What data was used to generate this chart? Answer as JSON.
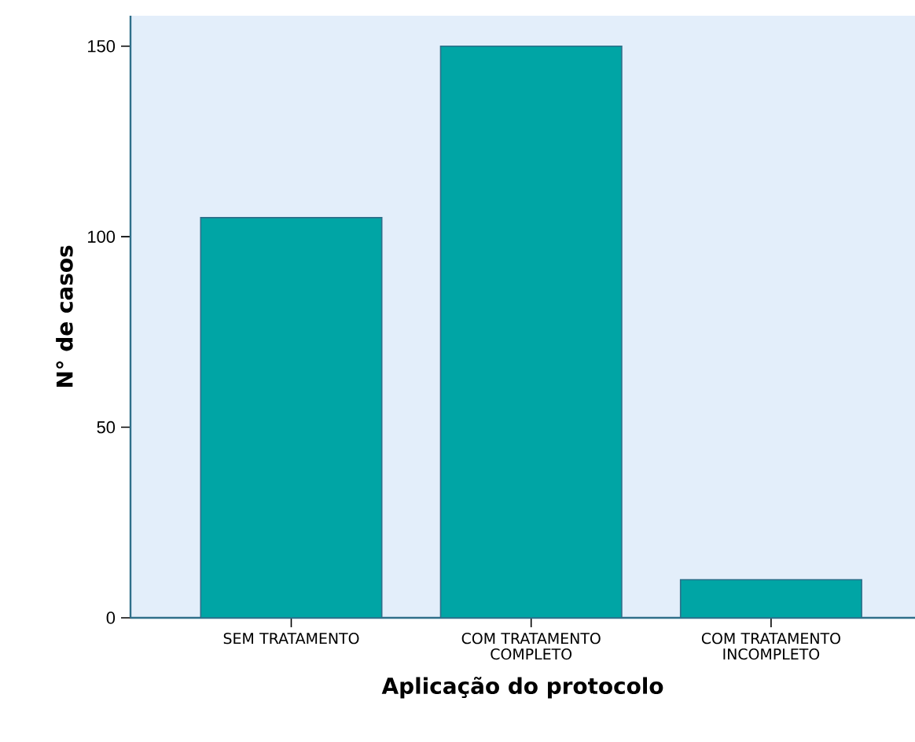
{
  "chart_data": {
    "type": "bar",
    "xlabel": "Aplicação do protocolo",
    "ylabel": "N° de casos",
    "categories": [
      "SEM TRATAMENTO",
      "COM TRATAMENTO COMPLETO",
      "COM TRATAMENTO INCOMPLETO"
    ],
    "values": [
      105,
      150,
      10
    ],
    "color": "#00a5a5",
    "ylim": [
      0,
      158
    ],
    "yticks": [
      0,
      50,
      100,
      150
    ],
    "grid": false
  }
}
